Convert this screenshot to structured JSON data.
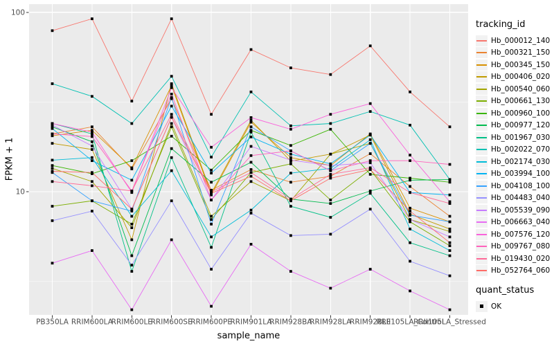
{
  "chart_data": {
    "type": "line",
    "title": "",
    "xlabel": "sample_name",
    "ylabel": "FPKM + 1",
    "y_scale": "log10",
    "ylim": [
      2.06,
      111
    ],
    "y_ticks": [
      {
        "value": 100,
        "label": "100"
      },
      {
        "value": 10,
        "label": "10"
      }
    ],
    "y_minor_ticks": [
      31.62,
      3.162
    ],
    "grid": true,
    "panel_background": "#EBEBEB",
    "grid_color": "#FFFFFF",
    "point_shape": "square",
    "point_color": "#000000",
    "legend_position": "right",
    "categories": [
      "PB350LA",
      "RRIM600LA",
      "RRIM600LE",
      "RRIM600SE",
      "RRIM600PE",
      "RRIM901LA",
      "RRIM928BA",
      "RRIM928LA",
      "RRIM928LE",
      "RRII105LA_Control",
      "RRII105LA_Stressed"
    ],
    "series": [
      {
        "name": "Hb_000012_140",
        "color": "#F8766D",
        "values": [
          79,
          92,
          32,
          92,
          27,
          62,
          49,
          45,
          65,
          36,
          23
        ]
      },
      {
        "name": "Hb_000321_150",
        "color": "#EA8331",
        "values": [
          21,
          23,
          13.4,
          33,
          10.2,
          13.3,
          11.3,
          12.2,
          16.3,
          10.7,
          7.3
        ]
      },
      {
        "name": "Hb_000345_150",
        "color": "#D89000",
        "values": [
          20.5,
          22,
          13.6,
          39,
          9.6,
          24.4,
          15.5,
          14.0,
          21,
          8.1,
          6.8
        ]
      },
      {
        "name": "Hb_000406_020",
        "color": "#C09B00",
        "values": [
          18.6,
          17.2,
          5.4,
          40,
          9.8,
          25,
          14.8,
          16.2,
          20.7,
          7.5,
          6.2
        ]
      },
      {
        "name": "Hb_000540_060",
        "color": "#A3A500",
        "values": [
          13.5,
          11.4,
          6.3,
          24,
          7.3,
          11.4,
          8.9,
          16.2,
          18.6,
          7.0,
          6.0
        ]
      },
      {
        "name": "Hb_000661_130",
        "color": "#7CAE00",
        "values": [
          8.3,
          8.9,
          6.6,
          23,
          7.0,
          12.8,
          14.3,
          9.0,
          13.3,
          6.8,
          5.0
        ]
      },
      {
        "name": "Hb_000960_100",
        "color": "#39B600",
        "values": [
          14.0,
          12.6,
          14.9,
          20.4,
          13.2,
          22,
          18.1,
          22.3,
          12.5,
          11.9,
          11.3
        ]
      },
      {
        "name": "Hb_000977_120",
        "color": "#00BB4E",
        "values": [
          23,
          19,
          4.4,
          17.4,
          11.3,
          14.6,
          9.1,
          8.6,
          10.1,
          11.6,
          11.7
        ]
      },
      {
        "name": "Hb_001967_030",
        "color": "#00C087",
        "values": [
          24,
          21,
          3.6,
          15.5,
          4.9,
          21.5,
          8.3,
          7.2,
          9.8,
          5.2,
          4.4
        ]
      },
      {
        "name": "Hb_002022_070",
        "color": "#00C0B2",
        "values": [
          40,
          34,
          24,
          44,
          15.6,
          36,
          23.3,
          24,
          28,
          23.5,
          11.7
        ]
      },
      {
        "name": "Hb_002174_030",
        "color": "#00BCD8",
        "values": [
          15.0,
          15.5,
          7.3,
          13.1,
          5.6,
          7.9,
          12.7,
          13.5,
          19.5,
          6.2,
          4.7
        ]
      },
      {
        "name": "Hb_003994_100",
        "color": "#00B3F2",
        "values": [
          22.5,
          14.9,
          11.6,
          30,
          12.7,
          20.2,
          16.2,
          14.3,
          20.7,
          9.9,
          9.6
        ]
      },
      {
        "name": "Hb_004108_100",
        "color": "#35A2FF",
        "values": [
          12.8,
          8.9,
          7.8,
          33.5,
          6.6,
          23,
          16.9,
          13.1,
          18.6,
          7.4,
          6.8
        ]
      },
      {
        "name": "Hb_004483_040",
        "color": "#9590FF",
        "values": [
          6.9,
          7.8,
          3.9,
          8.9,
          3.7,
          7.6,
          5.7,
          5.8,
          8.0,
          4.1,
          3.4
        ]
      },
      {
        "name": "Hb_005539_090",
        "color": "#C77CFF",
        "values": [
          23.5,
          18.0,
          8.0,
          26,
          9.0,
          17.9,
          15.0,
          14.0,
          14.5,
          7.0,
          5.6
        ]
      },
      {
        "name": "Hb_006663_040",
        "color": "#E76BF3",
        "values": [
          4.0,
          4.7,
          2.2,
          5.4,
          2.3,
          5.1,
          3.6,
          2.9,
          3.7,
          2.8,
          2.2
        ]
      },
      {
        "name": "Hb_007576_120",
        "color": "#FA62DB",
        "values": [
          24,
          21.5,
          9.9,
          38,
          17.7,
          25.9,
          22.3,
          27,
          31,
          16.0,
          8.8
        ]
      },
      {
        "name": "Hb_009767_080",
        "color": "#FF62BC",
        "values": [
          21,
          20.3,
          10.1,
          35,
          9.0,
          15.9,
          16.9,
          13.1,
          14.9,
          14.9,
          14.2
        ]
      },
      {
        "name": "Hb_019430_020",
        "color": "#FF6A98",
        "values": [
          11.4,
          10.8,
          10.1,
          27,
          10.0,
          12.8,
          9.1,
          12.5,
          13.6,
          9.9,
          8.6
        ]
      },
      {
        "name": "Hb_052764_060",
        "color": "#FF6C67",
        "values": [
          13.0,
          12.8,
          8.0,
          26,
          9.8,
          12.2,
          8.9,
          11.9,
          13.3,
          7.8,
          5.2
        ]
      }
    ]
  },
  "legend": {
    "title": "tracking_id"
  },
  "legend2": {
    "title": "quant_status",
    "items": [
      {
        "label": "OK",
        "marker": "square",
        "color": "#000000"
      }
    ]
  },
  "axis": {
    "tick_color": "#333333",
    "tick_label_color": "#4D4D4D"
  }
}
